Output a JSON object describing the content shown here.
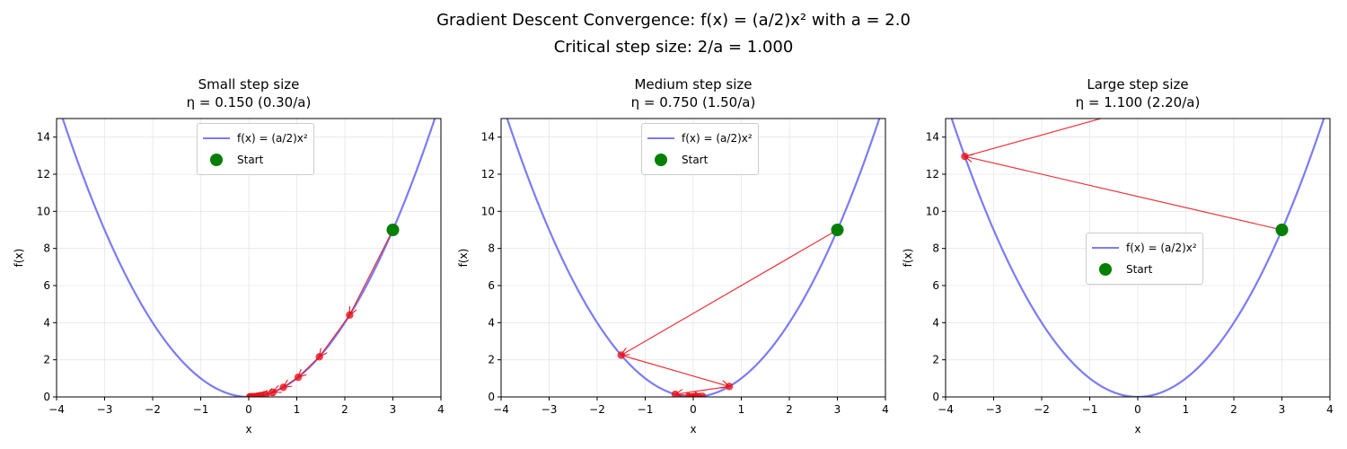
{
  "suptitle": {
    "line1": "Gradient Descent Convergence: f(x) = (a/2)x² with a = 2.0",
    "line2": "Critical step size: 2/a = 1.000"
  },
  "legend": {
    "curve_label": "f(x) = (a/2)x²",
    "start_label": "Start"
  },
  "colors": {
    "curve": "#7b7bf5",
    "steps": "#e8111a",
    "start": "#007f00",
    "grid": "#e6e6e6"
  },
  "chart_data": [
    {
      "type": "line",
      "title": "Small step size",
      "subtitle": "η = 0.150 (0.30/a)",
      "xlabel": "x",
      "ylabel": "f(x)",
      "xlim": [
        -4,
        4
      ],
      "ylim": [
        0,
        15
      ],
      "xticks": [
        -4,
        -3,
        -2,
        -1,
        0,
        1,
        2,
        3,
        4
      ],
      "yticks": [
        0,
        2,
        4,
        6,
        8,
        10,
        12,
        14
      ],
      "grid": true,
      "legend_position": "upper center",
      "a": 2.0,
      "eta": 0.15,
      "start": {
        "x": 3.0,
        "y": 9.0
      },
      "iterates_x": [
        3.0,
        2.1,
        1.47,
        1.029,
        0.72,
        0.504,
        0.353,
        0.247,
        0.173,
        0.121,
        0.085,
        0.059,
        0.042,
        0.029,
        0.02
      ]
    },
    {
      "type": "line",
      "title": "Medium step size",
      "subtitle": "η = 0.750 (1.50/a)",
      "xlabel": "x",
      "ylabel": "f(x)",
      "xlim": [
        -4,
        4
      ],
      "ylim": [
        0,
        15
      ],
      "xticks": [
        -4,
        -3,
        -2,
        -1,
        0,
        1,
        2,
        3,
        4
      ],
      "yticks": [
        0,
        2,
        4,
        6,
        8,
        10,
        12,
        14
      ],
      "grid": true,
      "legend_position": "upper center",
      "a": 2.0,
      "eta": 0.75,
      "start": {
        "x": 3.0,
        "y": 9.0
      },
      "iterates_x": [
        3.0,
        -1.5,
        0.75,
        -0.375,
        0.188,
        -0.094,
        0.047,
        -0.023,
        0.012,
        -0.006
      ]
    },
    {
      "type": "line",
      "title": "Large step size",
      "subtitle": "η = 1.100 (2.20/a)",
      "xlabel": "x",
      "ylabel": "f(x)",
      "xlim": [
        -4,
        4
      ],
      "ylim": [
        0,
        15
      ],
      "xticks": [
        -4,
        -3,
        -2,
        -1,
        0,
        1,
        2,
        3,
        4
      ],
      "yticks": [
        0,
        2,
        4,
        6,
        8,
        10,
        12,
        14
      ],
      "grid": true,
      "legend_position": "center right",
      "a": 2.0,
      "eta": 1.1,
      "start": {
        "x": 3.0,
        "y": 9.0
      },
      "iterates_x": [
        3.0,
        -3.6,
        4.32
      ]
    }
  ]
}
